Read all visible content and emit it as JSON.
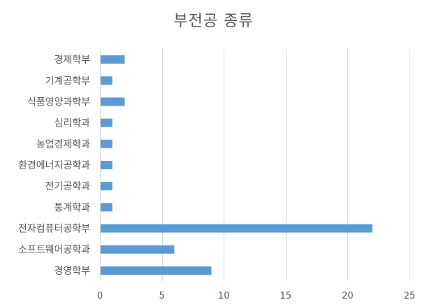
{
  "chart_data": {
    "type": "bar",
    "orientation": "horizontal",
    "title": "부전공 종류",
    "categories": [
      "경제학부",
      "기계공학부",
      "식품영양과학부",
      "심리학과",
      "농업경제학과",
      "환경에너지공학과",
      "전기공학과",
      "통계학과",
      "전자컴퓨터공학부",
      "소프트웨어공학과",
      "경영학부"
    ],
    "values": [
      2,
      1,
      2,
      1,
      1,
      1,
      1,
      1,
      22,
      6,
      9
    ],
    "xlim": [
      0,
      25
    ],
    "xticks": [
      "0",
      "5",
      "10",
      "15",
      "20",
      "25"
    ],
    "grid": "vertical",
    "legend": "none",
    "bar_color": "#5b9bd5",
    "grid_color": "#d9d9d9",
    "text_color": "#595959"
  }
}
